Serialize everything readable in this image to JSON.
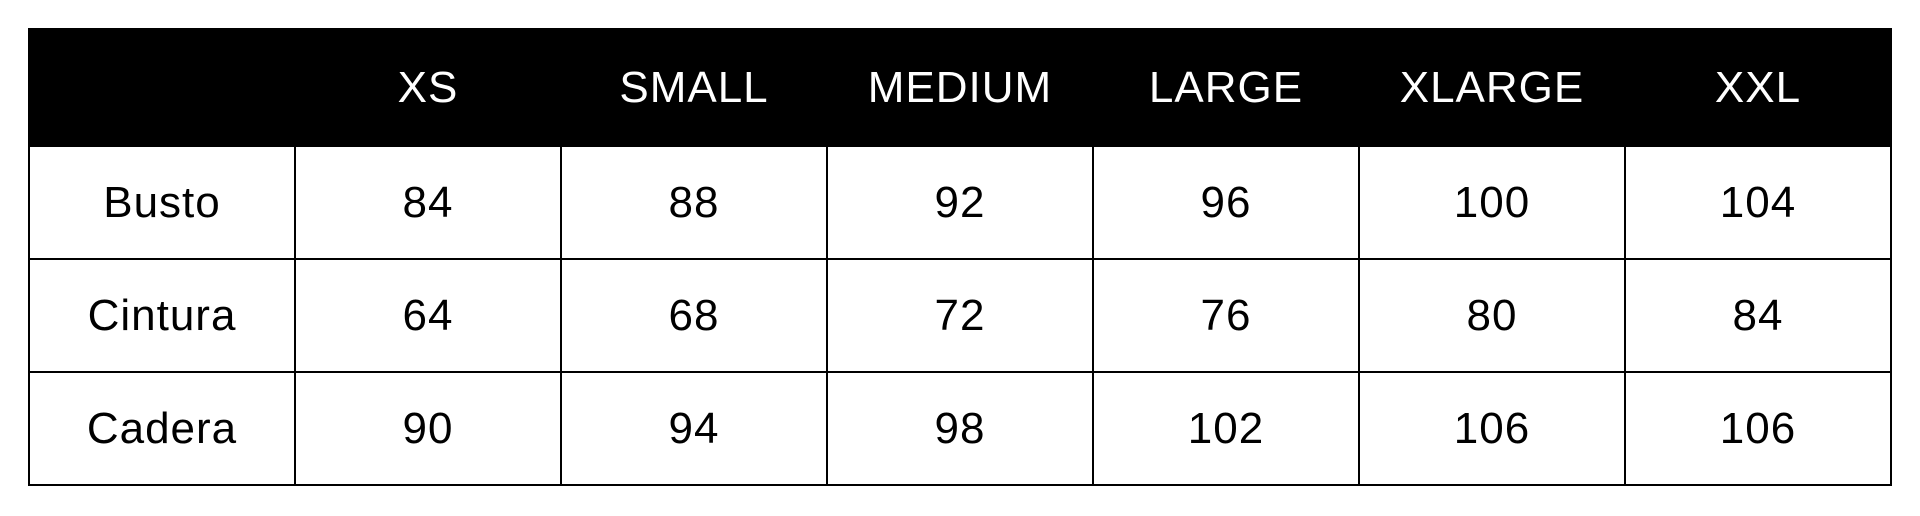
{
  "colors": {
    "header_bg": "#000000",
    "header_text": "#ffffff",
    "border": "#000000"
  },
  "table": {
    "headers": [
      "",
      "XS",
      "SMALL",
      "MEDIUM",
      "LARGE",
      "XLARGE",
      "XXL"
    ],
    "rows": [
      {
        "label": "Busto",
        "values": [
          "84",
          "88",
          "92",
          "96",
          "100",
          "104"
        ]
      },
      {
        "label": "Cintura",
        "values": [
          "64",
          "68",
          "72",
          "76",
          "80",
          "84"
        ]
      },
      {
        "label": "Cadera",
        "values": [
          "90",
          "94",
          "98",
          "102",
          "106",
          "106"
        ]
      }
    ]
  }
}
